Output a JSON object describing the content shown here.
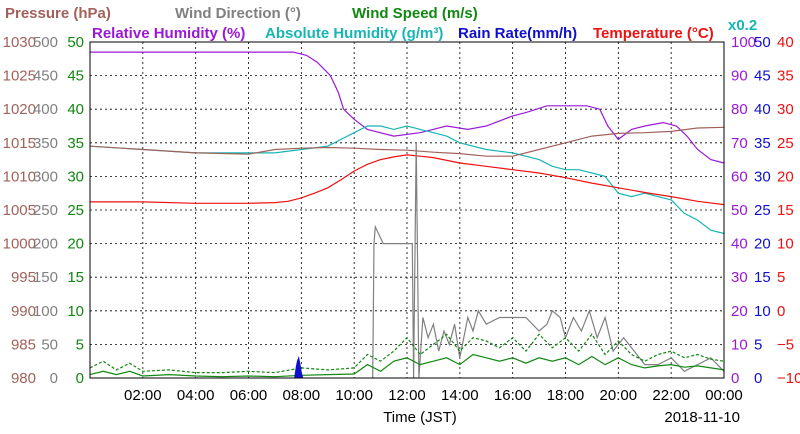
{
  "chart_data": {
    "type": "line",
    "header": {
      "row1": [
        {
          "text": "Pressure (hPa)",
          "color": "#a0625a"
        },
        {
          "text": "Wind Direction (°)",
          "color": "#808080"
        },
        {
          "text": "Wind Speed (m/s)",
          "color": "#118811"
        }
      ],
      "row2": [
        {
          "text": "Relative Humidity (%)",
          "color": "#9a19d8"
        },
        {
          "text": "Absolute Humidity (g/m³)",
          "color": "#17b5b5"
        },
        {
          "text": "Rain Rate(mm/h)",
          "color": "#1010cc"
        },
        {
          "text": "Temperature (°C)",
          "color": "#ee1111"
        }
      ],
      "scale_note": "x0.2"
    },
    "xlabel": "Time (JST)",
    "date": "2018-11-10",
    "xlim": [
      0,
      24
    ],
    "x_ticks": [
      "02:00",
      "04:00",
      "06:00",
      "08:00",
      "10:00",
      "12:00",
      "14:00",
      "16:00",
      "18:00",
      "20:00",
      "22:00",
      "00:00"
    ],
    "grid": true,
    "axes": {
      "pressure": {
        "unit": "hPa",
        "color": "#a0625a",
        "ticks": [
          "1030",
          "1025",
          "1020",
          "1015",
          "1010",
          "1005",
          "1000",
          "995",
          "990",
          "985",
          "980"
        ],
        "range": [
          980,
          1030
        ]
      },
      "wind_dir": {
        "unit": "°",
        "color": "#808080",
        "ticks": [
          "500",
          "450",
          "400",
          "350",
          "300",
          "250",
          "200",
          "150",
          "100",
          "50",
          "0"
        ],
        "range": [
          0,
          500
        ]
      },
      "wind_speed": {
        "unit": "m/s",
        "color": "#118811",
        "ticks": [
          "50",
          "45",
          "40",
          "35",
          "30",
          "25",
          "20",
          "15",
          "10",
          "5",
          "0"
        ],
        "range": [
          0,
          50
        ]
      },
      "humidity": {
        "unit": "%",
        "color": "#9a19d8",
        "ticks": [
          "100",
          "90",
          "80",
          "70",
          "60",
          "50",
          "40",
          "30",
          "20",
          "10",
          "0"
        ],
        "range": [
          0,
          100
        ]
      },
      "rain_rate": {
        "unit": "mm/h",
        "color": "#1010cc",
        "ticks": [
          "50",
          "45",
          "40",
          "35",
          "30",
          "25",
          "20",
          "15",
          "10",
          "5",
          "0"
        ],
        "range": [
          0,
          50
        ]
      },
      "temperature": {
        "unit": "°C",
        "color": "#ee1111",
        "ticks": [
          "40",
          "35",
          "30",
          "25",
          "20",
          "15",
          "10",
          "5",
          "0",
          "−5",
          "−10"
        ],
        "range": [
          -10,
          40
        ]
      }
    },
    "series": [
      {
        "name": "Relative Humidity (%)",
        "axis": "humidity",
        "color": "#9a19d8",
        "x": [
          0,
          4,
          7.3,
          7.7,
          8.2,
          8.6,
          9.1,
          9.4,
          9.6,
          10,
          10.5,
          11.5,
          12.5,
          13.5,
          14.3,
          15,
          16,
          16.5,
          17.3,
          18.2,
          18.8,
          19.3,
          19.6,
          20,
          20.5,
          21,
          21.7,
          22.2,
          22.6,
          23,
          23.5,
          24
        ],
        "y": [
          97,
          97,
          97,
          97,
          96,
          94,
          90,
          85,
          80,
          77,
          74,
          72,
          73,
          75,
          74,
          75,
          78,
          79,
          81,
          81,
          81,
          80,
          75,
          71,
          74,
          75,
          76,
          75,
          72,
          68,
          65,
          64
        ]
      },
      {
        "name": "Absolute Humidity (x0.2)",
        "axis": "humidity",
        "color": "#17b5b5",
        "x": [
          0,
          2,
          4,
          6,
          7,
          8,
          9,
          9.5,
          10,
          10.5,
          11,
          11.5,
          12,
          12.5,
          13,
          13.5,
          14,
          15,
          16,
          17,
          17.5,
          18,
          18.5,
          19,
          19.5,
          20,
          20.5,
          21,
          21.5,
          22,
          22.5,
          23,
          23.5,
          24
        ],
        "y": [
          69,
          68,
          67,
          67,
          67,
          68,
          69,
          71,
          73,
          75,
          75,
          74,
          75,
          74,
          73,
          72,
          70,
          68,
          67,
          65,
          63,
          62,
          62,
          61,
          60,
          55,
          54,
          55,
          54,
          53,
          49,
          47,
          44,
          43
        ]
      },
      {
        "name": "Pressure (hPa)",
        "axis": "pressure",
        "color": "#a0625a",
        "x": [
          0,
          2,
          4,
          6,
          7,
          8,
          9,
          10,
          11,
          12,
          13,
          14,
          15,
          16,
          17,
          18,
          19,
          20,
          21,
          22,
          23,
          24
        ],
        "y": [
          1014.5,
          1014,
          1013.5,
          1013.3,
          1014,
          1014.2,
          1014.3,
          1014.2,
          1014,
          1013.9,
          1013.6,
          1013.4,
          1013,
          1013,
          1014,
          1015,
          1016,
          1016.4,
          1016.5,
          1016.7,
          1017.2,
          1017.3
        ]
      },
      {
        "name": "Temperature (°C)",
        "axis": "temperature",
        "color": "#ee1111",
        "x": [
          0,
          2,
          4,
          6,
          7,
          7.5,
          8,
          8.5,
          9,
          9.5,
          10,
          10.5,
          11,
          11.5,
          12,
          12.5,
          13,
          14,
          15,
          16,
          17,
          18,
          19,
          20,
          21,
          22,
          23,
          24
        ],
        "y": [
          16.2,
          16.2,
          16,
          16,
          16.1,
          16.3,
          16.8,
          17.5,
          18.3,
          19.5,
          20.8,
          21.8,
          22.5,
          22.9,
          23.2,
          23,
          22.8,
          22,
          21.5,
          21,
          20.5,
          19.8,
          19,
          18.3,
          17.6,
          17,
          16.3,
          15.8
        ]
      },
      {
        "name": "Wind Direction (°)",
        "axis": "wind_dir",
        "color": "#808080",
        "x": [
          10.7,
          10.75,
          10.8,
          11.1,
          11.3,
          12.2,
          12.25,
          12.35,
          12.45,
          12.6,
          12.8,
          13.0,
          13.2,
          13.4,
          13.6,
          13.8,
          14.0,
          14.3,
          14.5,
          14.7,
          15.0,
          15.5,
          16.0,
          16.5,
          17.0,
          17.3,
          17.5,
          17.8,
          18.0,
          18.3,
          18.6,
          18.9,
          19.2,
          19.5,
          19.8,
          20.2,
          20.6,
          21.0,
          21.5,
          22.0,
          22.5,
          23.0,
          23.5,
          24.0
        ],
        "y": [
          0,
          200,
          225,
          200,
          200,
          200,
          0,
          350,
          0,
          90,
          60,
          80,
          40,
          70,
          50,
          80,
          30,
          90,
          70,
          100,
          80,
          90,
          90,
          90,
          70,
          80,
          100,
          90,
          60,
          90,
          70,
          100,
          60,
          90,
          40,
          60,
          40,
          20,
          20,
          30,
          10,
          20,
          30,
          10
        ]
      },
      {
        "name": "Wind Speed (m/s)",
        "axis": "wind_speed",
        "color": "#118811",
        "x": [
          0,
          0.5,
          1,
          1.5,
          2,
          3,
          4,
          5,
          6,
          7,
          8,
          9,
          10,
          10.5,
          11,
          11.5,
          12,
          12.5,
          13,
          13.5,
          14,
          14.5,
          15,
          15.5,
          16,
          16.5,
          17,
          17.5,
          18,
          18.5,
          19,
          19.5,
          20,
          20.5,
          21,
          21.5,
          22,
          22.5,
          23,
          23.5,
          24
        ],
        "y": [
          0.5,
          1,
          0.5,
          1,
          0.3,
          0.5,
          0.3,
          0.2,
          0.3,
          0.2,
          0.4,
          0.5,
          0.6,
          2,
          1,
          2.5,
          3,
          2,
          2.5,
          3,
          2,
          3.5,
          3,
          2.5,
          3,
          2.2,
          3,
          2.5,
          3,
          2,
          3.2,
          2,
          3,
          2,
          1.5,
          1.8,
          2,
          1.6,
          1.8,
          1.5,
          1.2
        ]
      },
      {
        "name": "Wind Speed gust (m/s)",
        "axis": "wind_speed",
        "color": "#118811",
        "dashed": true,
        "x": [
          0,
          0.5,
          1,
          1.5,
          2,
          3,
          4,
          5,
          6,
          7,
          8,
          9,
          10,
          10.5,
          11,
          11.5,
          12,
          12.5,
          13,
          13.5,
          14,
          14.5,
          15,
          15.5,
          16,
          16.5,
          17,
          17.5,
          18,
          18.5,
          19,
          19.5,
          20,
          20.5,
          21,
          21.5,
          22,
          22.5,
          23,
          23.5,
          24
        ],
        "y": [
          1.5,
          2.5,
          1.2,
          2.2,
          1,
          1.2,
          0.8,
          0.8,
          1,
          0.8,
          1.5,
          1.2,
          1.5,
          3.5,
          2.5,
          4,
          6,
          3.5,
          5,
          6.5,
          4,
          6,
          5.5,
          4.5,
          6,
          4,
          6.5,
          4.5,
          6,
          4,
          6.5,
          3.5,
          5.5,
          3.5,
          2.5,
          3.5,
          4,
          3,
          3.5,
          2.8,
          2.5
        ]
      },
      {
        "name": "Rain Rate(mm/h)",
        "axis": "rain_rate",
        "color": "#1010cc",
        "x": [
          7.75,
          7.8,
          7.85,
          7.9,
          7.95,
          8.0,
          8.05
        ],
        "y": [
          0,
          1.5,
          2.5,
          3.0,
          2.0,
          0.8,
          0
        ]
      }
    ]
  }
}
